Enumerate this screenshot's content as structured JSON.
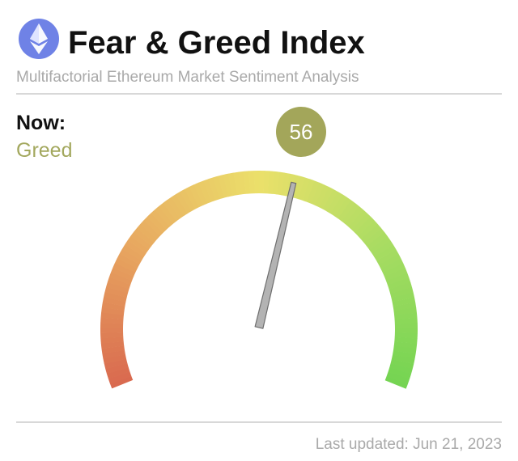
{
  "chart_data": {
    "type": "gauge",
    "title": "Fear & Greed Index",
    "subtitle": "Multifactorial Ethereum Market Sentiment Analysis",
    "now_label": "Now:",
    "status": "Greed",
    "value": 56,
    "range": [
      0,
      100
    ],
    "value_color": "#a3a65a",
    "status_color": "#a3a85e",
    "footer": "Last updated: Jun 21, 2023"
  }
}
